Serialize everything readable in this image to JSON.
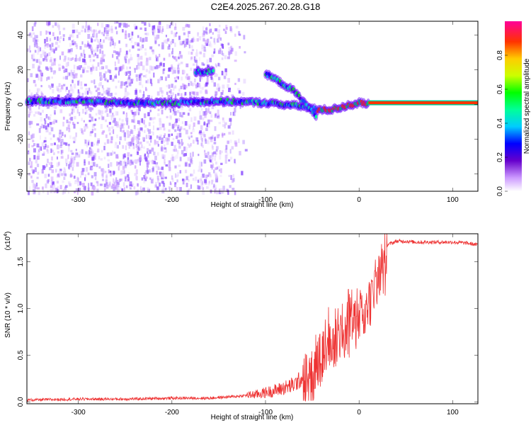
{
  "title": "C2E4.2025.267.20.28.G18",
  "chart_data": [
    {
      "type": "heatmap",
      "xlabel": "Height of straight line (km)",
      "ylabel": "Frequency (Hz)",
      "xlim": [
        -355,
        127
      ],
      "ylim": [
        -50,
        48
      ],
      "xticks": [
        -300,
        -200,
        -100,
        0,
        100
      ],
      "yticks": [
        -40,
        -20,
        0,
        20,
        40
      ],
      "colorbar": {
        "label": "Normalized spectral amplitude",
        "range": [
          0,
          1
        ],
        "ticks": [
          "0.0",
          "0.2",
          "0.4",
          "0.6",
          "0.8"
        ]
      },
      "traces": [
        {
          "x": [
            -355,
            -300,
            -250,
            -200,
            -150,
            -100,
            -60,
            -45,
            -30,
            -15,
            0,
            10
          ],
          "y": [
            2,
            2,
            1,
            1,
            2,
            1,
            -1,
            -3,
            -3,
            -1,
            1,
            0
          ]
        },
        {
          "x": [
            -100,
            -85,
            -70,
            -60,
            -50,
            -45
          ],
          "y": [
            18,
            13,
            8,
            2,
            -4,
            -8
          ]
        },
        {
          "x": [
            10,
            127
          ],
          "y": [
            1,
            1
          ]
        },
        {
          "x": [
            -175,
            -155
          ],
          "y": [
            19,
            19
          ]
        }
      ]
    },
    {
      "type": "line",
      "xlabel": "Height of straight line (km)",
      "ylabel": "SNR (10 * v/v)",
      "multiplier": "(x10^4)",
      "multiplier_base": "(x10",
      "multiplier_exp": "4",
      "xlim": [
        -355,
        127
      ],
      "ylim": [
        -0.02,
        1.8
      ],
      "xticks": [
        -300,
        -200,
        -100,
        0,
        100
      ],
      "yticks": [
        "0.0",
        "0.5",
        "1.0",
        "1.5"
      ],
      "color": "#ee3333",
      "x": [
        -355,
        -300,
        -250,
        -200,
        -160,
        -130,
        -110,
        -90,
        -70,
        -55,
        -48,
        -42,
        -38,
        -34,
        -30,
        -26,
        -22,
        -18,
        -14,
        -10,
        -6,
        -2,
        2,
        6,
        10,
        15,
        20,
        25,
        30,
        35,
        40,
        50,
        60,
        80,
        100,
        115,
        127
      ],
      "y": [
        0.02,
        0.03,
        0.03,
        0.04,
        0.04,
        0.06,
        0.08,
        0.12,
        0.18,
        0.3,
        0.55,
        0.7,
        0.75,
        0.8,
        0.75,
        0.8,
        0.85,
        0.9,
        0.95,
        1.0,
        1.05,
        1.05,
        1.1,
        1.15,
        1.2,
        1.3,
        1.45,
        1.6,
        1.68,
        1.7,
        1.72,
        1.72,
        1.71,
        1.71,
        1.71,
        1.7,
        1.68
      ]
    }
  ]
}
